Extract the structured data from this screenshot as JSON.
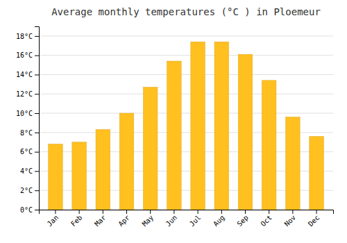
{
  "chart_data": {
    "type": "bar",
    "title": "Average monthly temperatures (°C ) in Ploemeur",
    "categories": [
      "Jan",
      "Feb",
      "Mar",
      "Apr",
      "May",
      "Jun",
      "Jul",
      "Aug",
      "Sep",
      "Oct",
      "Nov",
      "Dec"
    ],
    "values": [
      6.8,
      7.0,
      8.3,
      10.0,
      12.7,
      15.4,
      17.4,
      17.4,
      16.1,
      13.4,
      9.6,
      7.6
    ],
    "color": "#FFC020",
    "ylim": [
      0,
      19
    ],
    "yticks": [
      {
        "value": 0,
        "label": "0°C"
      },
      {
        "value": 2,
        "label": "2°C"
      },
      {
        "value": 4,
        "label": "4°C"
      },
      {
        "value": 6,
        "label": "6°C"
      },
      {
        "value": 8,
        "label": "8°C"
      },
      {
        "value": 10,
        "label": "10°C"
      },
      {
        "value": 12,
        "label": "12°C"
      },
      {
        "value": 14,
        "label": "14°C"
      },
      {
        "value": 16,
        "label": "16°C"
      },
      {
        "value": 18,
        "label": "18°C"
      }
    ],
    "grid": true
  }
}
